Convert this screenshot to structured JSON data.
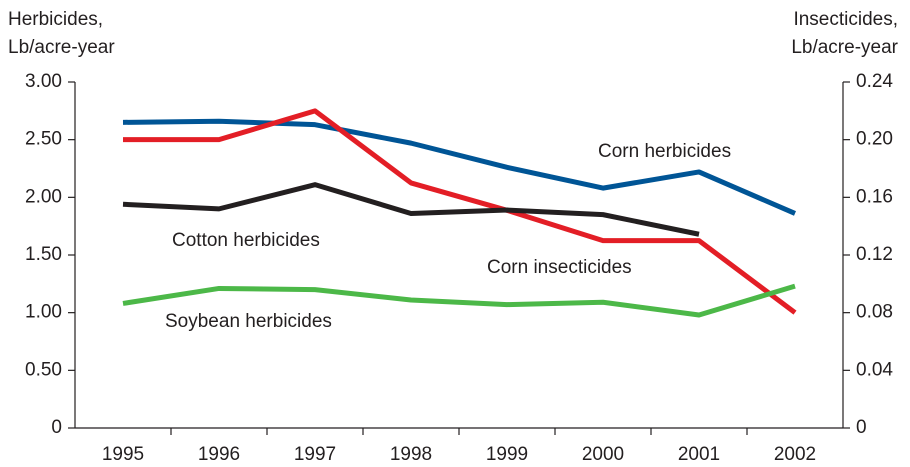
{
  "chart_data": {
    "type": "line",
    "ylabel": [
      "Herbicides,",
      "Lb/acre-year"
    ],
    "y2label": [
      "Insecticides,",
      "Lb/acre-year"
    ],
    "categories": [
      "1995",
      "1996",
      "1997",
      "1998",
      "1999",
      "2000",
      "2001",
      "2002"
    ],
    "series": [
      {
        "name": "Corn herbicides",
        "color": "#005596",
        "values": [
          2.65,
          2.66,
          2.63,
          2.47,
          2.26,
          2.08,
          2.22,
          1.86
        ]
      },
      {
        "name": "Corn insecticides",
        "color": "#e31e26",
        "axis": "y2",
        "values": [
          0.2,
          0.2,
          0.22,
          0.17,
          0.151,
          0.13,
          0.13,
          0.08
        ]
      },
      {
        "name": "Cotton herbicides",
        "color": "#231f20",
        "values": [
          1.94,
          1.9,
          2.11,
          1.86,
          1.89,
          1.85,
          1.68,
          null
        ]
      },
      {
        "name": "Soybean herbicides",
        "color": "#4cb848",
        "values": [
          1.08,
          1.21,
          1.2,
          1.11,
          1.07,
          1.09,
          0.98,
          1.23
        ]
      }
    ],
    "ylim": [
      0,
      3
    ],
    "yticks": [
      0,
      {
        "value": 0.5,
        "label": "0.50"
      },
      {
        "value": 1,
        "label": "1.00"
      },
      {
        "value": 1.5,
        "label": "1.50"
      },
      {
        "value": 2,
        "label": "2.00"
      },
      {
        "value": 2.5,
        "label": "2.50"
      },
      {
        "value": 3,
        "label": "3.00"
      }
    ],
    "y2lim": [
      0,
      0.24
    ],
    "y2ticks": [
      0,
      0.04,
      0.08,
      0.12,
      0.16,
      {
        "value": 0.2,
        "label": "0.20"
      },
      0.24
    ],
    "grid": false
  }
}
